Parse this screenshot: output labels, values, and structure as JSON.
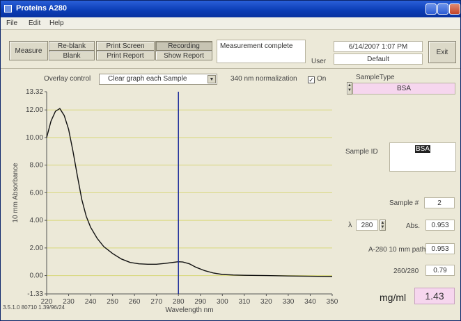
{
  "window": {
    "title": "Proteins A280"
  },
  "menu": [
    "File",
    "Edit",
    "Help"
  ],
  "toolbar": {
    "measure": "Measure",
    "reblank": "Re-blank",
    "blank": "Blank",
    "print_screen": "Print Screen",
    "print_report": "Print Report",
    "recording": "Recording",
    "show_report": "Show Report",
    "status": "Measurement complete",
    "datetime": "6/14/2007 1:07 PM",
    "user_label": "User",
    "user_value": "Default",
    "exit": "Exit"
  },
  "graph_controls": {
    "overlay_label": "Overlay control",
    "overlay_value": "Clear graph each Sample",
    "normalization_label": "340 nm normalization",
    "normalization_checked": true,
    "on_label": "On"
  },
  "right_panel": {
    "sample_type_label": "SampleType",
    "sample_type_value": "BSA",
    "sample_id_label": "Sample ID",
    "sample_id_value": "BSA",
    "sample_num_label": "Sample #",
    "sample_num_value": "2",
    "lambda_symbol": "λ",
    "lambda_value": "280",
    "abs_label": "Abs.",
    "abs_value": "0.953",
    "a280_label": "A-280 10 mm path",
    "a280_value": "0.953",
    "ratio_label": "260/280",
    "ratio_value": "0.79",
    "mgml_label": "mg/ml",
    "mgml_value": "1.43"
  },
  "version": "3.5.1.0 80710 1.39/96/24",
  "chart_data": {
    "type": "line",
    "xlabel": "Wavelength nm",
    "ylabel": "10 mm Absorbance",
    "xlim": [
      220,
      350
    ],
    "ylim": [
      -1.33,
      13.32
    ],
    "x_ticks": [
      220,
      230,
      240,
      250,
      260,
      270,
      280,
      290,
      300,
      310,
      320,
      330,
      340,
      350
    ],
    "y_ticks": [
      -1.33,
      0.0,
      2.0,
      4.0,
      6.0,
      8.0,
      10.0,
      12.0,
      13.32
    ],
    "y_tick_labels": [
      "-1.33",
      "0.00",
      "2.00",
      "4.00",
      "6.00",
      "8.00",
      "10.00",
      "12.00",
      "13.32"
    ],
    "grid_y": [
      0,
      2,
      4,
      6,
      8,
      10,
      12
    ],
    "cursor_x": 280,
    "colors": {
      "line": "#111111",
      "cursor": "#1a2a9a",
      "grid": "#d8d87a"
    },
    "series": [
      {
        "x": [
          220,
          222,
          224,
          226,
          228,
          230,
          232,
          234,
          236,
          238,
          240,
          243,
          246,
          250,
          254,
          258,
          262,
          266,
          270,
          274,
          278,
          280,
          282,
          285,
          288,
          292,
          296,
          300,
          305,
          310,
          320,
          330,
          340,
          350
        ],
        "y": [
          10.0,
          11.2,
          11.9,
          12.1,
          11.6,
          10.6,
          9.0,
          7.2,
          5.5,
          4.3,
          3.5,
          2.7,
          2.1,
          1.6,
          1.2,
          0.95,
          0.85,
          0.82,
          0.82,
          0.88,
          0.96,
          1.0,
          0.98,
          0.85,
          0.6,
          0.35,
          0.18,
          0.08,
          0.04,
          0.02,
          0.0,
          -0.03,
          -0.05,
          -0.07
        ]
      }
    ]
  }
}
